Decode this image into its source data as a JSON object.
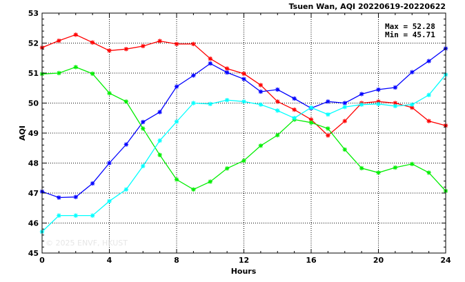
{
  "chart_data": {
    "type": "line",
    "title": "Tsuen Wan, AQI 20220619-20220622",
    "xlabel": "Hours",
    "ylabel": "AQI",
    "xlim": [
      0,
      24
    ],
    "ylim": [
      45,
      53
    ],
    "x_ticks": [
      0,
      4,
      8,
      12,
      16,
      20,
      24
    ],
    "y_ticks": [
      45,
      46,
      47,
      48,
      49,
      50,
      51,
      52,
      53
    ],
    "grid": true,
    "stats": {
      "max": "Max = 52.28",
      "min": "Min = 45.71"
    },
    "watermark": "© 2025 ENVF, HKUST",
    "x": [
      0,
      1,
      2,
      3,
      4,
      5,
      6,
      7,
      8,
      9,
      10,
      11,
      12,
      13,
      14,
      15,
      16,
      17,
      18,
      19,
      20,
      21,
      22,
      23,
      24
    ],
    "series": [
      {
        "color": "#ff0000",
        "values": [
          51.85,
          52.08,
          52.28,
          52.02,
          51.75,
          51.8,
          51.9,
          52.07,
          51.97,
          51.97,
          51.48,
          51.15,
          50.98,
          50.6,
          50.05,
          49.78,
          49.45,
          48.92,
          49.4,
          50.0,
          50.05,
          50.0,
          49.85,
          49.4,
          49.25
        ]
      },
      {
        "color": "#0000ff",
        "values": [
          47.05,
          46.85,
          46.87,
          47.32,
          48.0,
          48.62,
          49.37,
          49.7,
          50.55,
          50.92,
          51.32,
          51.02,
          50.8,
          50.38,
          50.45,
          50.15,
          49.83,
          50.05,
          50.0,
          50.3,
          50.45,
          50.52,
          51.03,
          51.4,
          51.82
        ]
      },
      {
        "color": "#00ee00",
        "values": [
          50.97,
          51.0,
          51.2,
          50.98,
          50.33,
          50.05,
          49.15,
          48.27,
          47.45,
          47.12,
          47.38,
          47.82,
          48.08,
          48.58,
          48.93,
          49.45,
          49.35,
          49.15,
          48.45,
          47.83,
          47.68,
          47.85,
          47.97,
          47.68,
          47.07
        ]
      },
      {
        "color": "#00ffff",
        "values": [
          45.71,
          46.25,
          46.25,
          46.25,
          46.73,
          47.12,
          47.9,
          48.75,
          49.38,
          50.0,
          49.97,
          50.1,
          50.05,
          49.95,
          49.75,
          49.5,
          49.85,
          49.62,
          49.87,
          49.95,
          49.97,
          49.9,
          49.95,
          50.27,
          50.95
        ]
      }
    ]
  }
}
